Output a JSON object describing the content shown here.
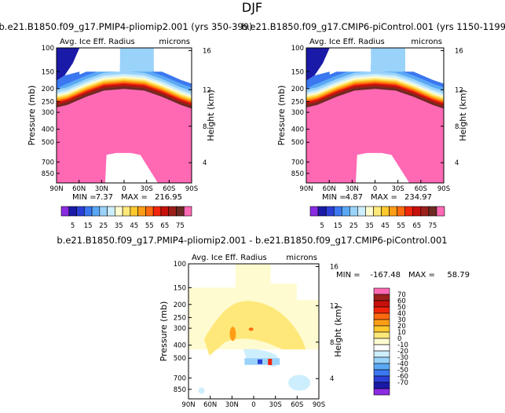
{
  "page_title": "DJF",
  "colors": {
    "bg": "#ffffff",
    "abs_levels": [
      "#8a2be2",
      "#1a1aa8",
      "#2b3fd8",
      "#3b77f0",
      "#5aa8f5",
      "#9ad3fa",
      "#cdeefd",
      "#fffbd0",
      "#ffe87a",
      "#ffc92e",
      "#ff9d16",
      "#ff6a0f",
      "#f0250b",
      "#c8100b",
      "#9b1f1a",
      "#6b2a22",
      "#ff69b4"
    ],
    "diff_levels": [
      "#8a2be2",
      "#1a1aa8",
      "#2b3fd8",
      "#3b77f0",
      "#5aa8f5",
      "#9ad3fa",
      "#cdeefd",
      "#ffffff",
      "#fffbd0",
      "#ffe87a",
      "#ffc92e",
      "#ff9d16",
      "#ff6a0f",
      "#f0250b",
      "#c8100b",
      "#9b1f1a",
      "#ff69b4"
    ]
  },
  "chart_data": [
    {
      "type": "heatmap",
      "name": "panel-pmip4",
      "title": "b.e21.B1850.f09_g17.PMIP4-pliomip2.001 (yrs 350-399)",
      "variable": "Avg. Ice Eff. Radius",
      "units": "microns",
      "xlabel": "",
      "ylabel": "Pressure (mb)",
      "ylabel_right": "Height (km)",
      "x_ticks": [
        "90N",
        "60N",
        "30N",
        "0",
        "30S",
        "60S",
        "90S"
      ],
      "y_ticks": [
        "100",
        "150",
        "200",
        "250",
        "300",
        "400",
        "500",
        "700",
        "850"
      ],
      "height_ticks": [
        "16",
        "12",
        "8",
        "4"
      ],
      "ylim": [
        1000,
        100
      ],
      "min_label": "MIN =",
      "min": "7.37",
      "max_label": "MAX =",
      "max": "216.95",
      "levels": [
        5,
        10,
        15,
        20,
        25,
        30,
        35,
        40,
        45,
        50,
        55,
        60,
        65,
        70,
        75
      ],
      "colorbar_labels": [
        "5",
        "15",
        "25",
        "35",
        "45",
        "55",
        "65",
        "75"
      ]
    },
    {
      "type": "heatmap",
      "name": "panel-cmip6",
      "title": "b.e21.B1850.f09_g17.CMIP6-piControl.001 (yrs 1150-1199)",
      "variable": "Avg. Ice Eff. Radius",
      "units": "microns",
      "xlabel": "",
      "ylabel": "Pressure (mb)",
      "ylabel_right": "Height (km)",
      "x_ticks": [
        "90N",
        "60N",
        "30N",
        "0",
        "30S",
        "60S",
        "90S"
      ],
      "y_ticks": [
        "100",
        "150",
        "200",
        "250",
        "300",
        "400",
        "500",
        "700",
        "850"
      ],
      "height_ticks": [
        "16",
        "12",
        "8",
        "4"
      ],
      "ylim": [
        1000,
        100
      ],
      "min_label": "MIN =",
      "min": "4.87",
      "max_label": "MAX =",
      "max": "234.97",
      "levels": [
        5,
        10,
        15,
        20,
        25,
        30,
        35,
        40,
        45,
        50,
        55,
        60,
        65,
        70,
        75
      ],
      "colorbar_labels": [
        "5",
        "15",
        "25",
        "35",
        "45",
        "55",
        "65",
        "75"
      ]
    },
    {
      "type": "heatmap",
      "name": "panel-diff",
      "title": "b.e21.B1850.f09_g17.PMIP4-pliomip2.001 - b.e21.B1850.f09_g17.CMIP6-piControl.001",
      "variable": "Avg. Ice Eff. Radius",
      "units": "microns",
      "xlabel": "",
      "ylabel": "Pressure (mb)",
      "ylabel_right": "Height (km)",
      "x_ticks": [
        "90N",
        "60N",
        "30N",
        "0",
        "30S",
        "60S",
        "90S"
      ],
      "y_ticks": [
        "100",
        "150",
        "200",
        "250",
        "300",
        "400",
        "500",
        "700",
        "850"
      ],
      "height_ticks": [
        "16",
        "12",
        "8",
        "4"
      ],
      "ylim": [
        1000,
        100
      ],
      "min_label": "MIN =",
      "min": "-167.48",
      "max_label": "MAX =",
      "max": "58.79",
      "levels": [
        -70,
        -60,
        -50,
        -40,
        -30,
        -20,
        -10,
        0,
        10,
        20,
        30,
        40,
        50,
        60,
        70
      ],
      "colorbar_labels": [
        "70",
        "60",
        "50",
        "40",
        "30",
        "20",
        "10",
        "0",
        "-10",
        "-20",
        "-30",
        "-40",
        "-50",
        "-60",
        "-70"
      ]
    }
  ]
}
